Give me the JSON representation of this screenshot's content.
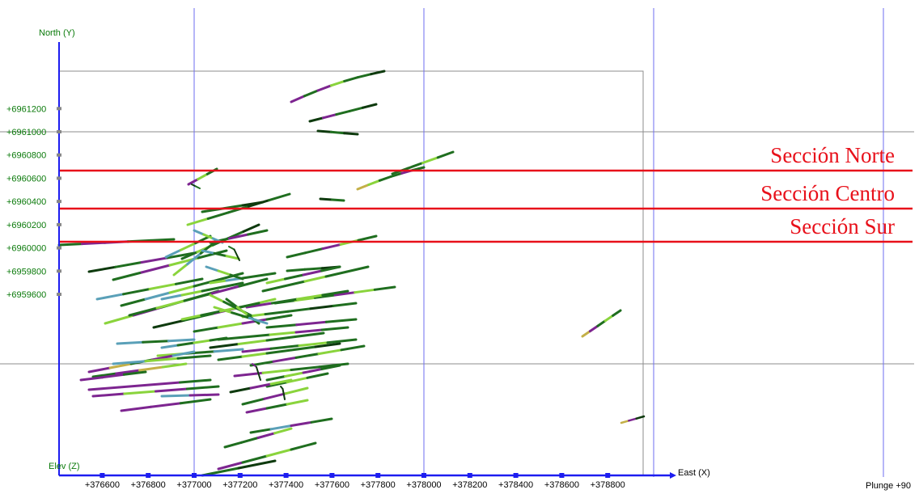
{
  "axes": {
    "north_label": "North (Y)",
    "east_label": "East (X)",
    "elev_label": "Elev (Z)",
    "x_ticks": [
      "+376600",
      "+376800",
      "+377000",
      "+377200",
      "+377400",
      "+377600",
      "+377800",
      "+378000",
      "+378200",
      "+378400",
      "+378600",
      "+378800"
    ],
    "y_ticks": [
      "+6961200",
      "+6961000",
      "+6960800",
      "+6960600",
      "+6960400",
      "+6960200",
      "+6960000",
      "+6959800",
      "+6959600"
    ]
  },
  "sections": [
    {
      "label": "Sección Norte",
      "northing": 6960665
    },
    {
      "label": "Sección Centro",
      "northing": 6960335
    },
    {
      "label": "Sección Sur",
      "northing": 6960055
    }
  ],
  "status": {
    "plunge": "Plunge +90"
  },
  "colors": {
    "axis": "#1d1df0",
    "tick_text": "#0a7a0a",
    "section_line": "#e8101a",
    "grid_line": "#6e6ef0",
    "drillhole_palette": [
      "#1f6e1f",
      "#7d2590",
      "#8ad43c",
      "#5aa0b8",
      "#0e3a0e",
      "#c4b048"
    ]
  }
}
